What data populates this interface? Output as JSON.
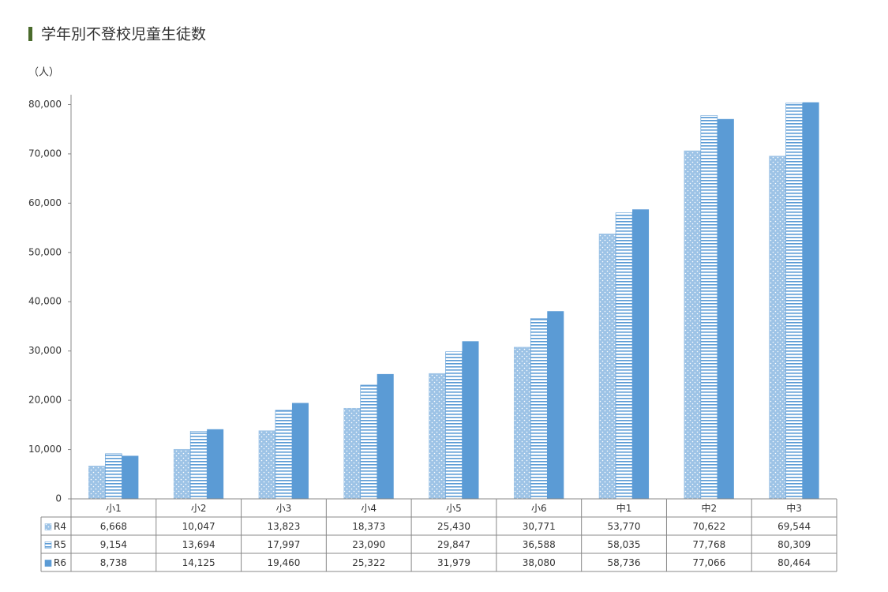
{
  "chart_data": {
    "type": "bar",
    "title": "学年別不登校児童生徒数",
    "y_unit_label": "（人）",
    "categories": [
      "小1",
      "小2",
      "小3",
      "小4",
      "小5",
      "小6",
      "中1",
      "中2",
      "中3"
    ],
    "series": [
      {
        "name": "R4",
        "color": "#9dc3e6",
        "pattern": "dots",
        "values": [
          6668,
          10047,
          13823,
          18373,
          25430,
          30771,
          53770,
          70622,
          69544
        ],
        "value_labels": [
          "6,668",
          "10,047",
          "13,823",
          "18,373",
          "25,430",
          "30,771",
          "53,770",
          "70,622",
          "69,544"
        ]
      },
      {
        "name": "R5",
        "color": "#5b9bd5",
        "pattern": "stripes",
        "values": [
          9154,
          13694,
          17997,
          23090,
          29847,
          36588,
          58035,
          77768,
          80309
        ],
        "value_labels": [
          "9,154",
          "13,694",
          "17,997",
          "23,090",
          "29,847",
          "36,588",
          "58,035",
          "77,768",
          "80,309"
        ]
      },
      {
        "name": "R6",
        "color": "#5b9bd5",
        "pattern": "solid",
        "values": [
          8738,
          14125,
          19460,
          25322,
          31979,
          38080,
          58736,
          77066,
          80464
        ],
        "value_labels": [
          "8,738",
          "14,125",
          "19,460",
          "25,322",
          "31,979",
          "38,080",
          "58,736",
          "77,066",
          "80,464"
        ]
      }
    ],
    "ylim": [
      0,
      82000
    ],
    "yticks": [
      0,
      {
        "value": 10000,
        "label": "10,000"
      },
      {
        "value": 20000,
        "label": "20,000"
      },
      {
        "value": 30000,
        "label": "30,000"
      },
      {
        "value": 40000,
        "label": "40,000"
      },
      {
        "value": 50000,
        "label": "50,000"
      },
      {
        "value": 60000,
        "label": "60,000"
      },
      {
        "value": 70000,
        "label": "70,000"
      },
      {
        "value": 80000,
        "label": "80,000"
      }
    ],
    "grid": false
  }
}
